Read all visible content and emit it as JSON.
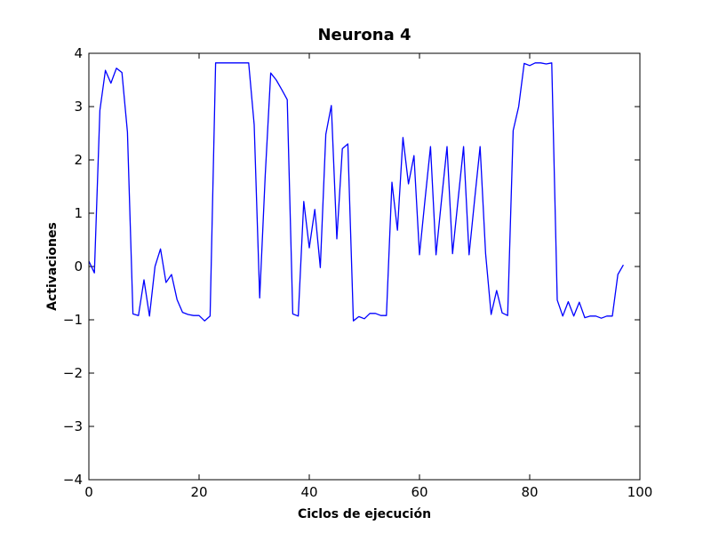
{
  "chart_data": {
    "type": "line",
    "title": "Neurona 4",
    "xlabel": "Ciclos de ejecución",
    "ylabel": "Activaciones",
    "xlim": [
      0,
      100
    ],
    "ylim": [
      -4,
      4
    ],
    "xticks": [
      0,
      20,
      40,
      60,
      80,
      100
    ],
    "yticks": [
      -4,
      -3,
      -2,
      -1,
      0,
      1,
      2,
      3,
      4
    ],
    "ytick_labels": [
      "−4",
      "−3",
      "−2",
      "−1",
      "0",
      "1",
      "2",
      "3",
      "4"
    ],
    "xtick_labels": [
      "0",
      "20",
      "40",
      "60",
      "80",
      "100"
    ],
    "grid": false,
    "legend": "none",
    "series": [
      {
        "color": "#0000ff",
        "x": [
          0,
          1,
          2,
          3,
          4,
          5,
          6,
          7,
          8,
          9,
          10,
          11,
          12,
          13,
          14,
          15,
          16,
          17,
          18,
          19,
          20,
          21,
          22,
          23,
          24,
          25,
          26,
          27,
          28,
          29,
          30,
          31,
          32,
          33,
          34,
          35,
          36,
          37,
          38,
          39,
          40,
          41,
          42,
          43,
          44,
          45,
          46,
          47,
          48,
          49,
          50,
          51,
          52,
          53,
          54,
          55,
          56,
          57,
          58,
          59,
          60,
          61,
          62,
          63,
          64,
          65,
          66,
          67,
          68,
          69,
          70,
          71,
          72,
          73,
          74,
          75,
          76,
          77,
          78,
          79,
          80,
          81,
          82,
          83,
          84,
          85,
          86,
          87,
          88,
          89,
          90,
          91,
          92,
          93,
          94,
          95,
          96,
          97
        ],
        "y": [
          0.1,
          -0.12,
          2.93,
          3.68,
          3.44,
          3.72,
          3.64,
          2.52,
          -0.89,
          -0.92,
          -0.25,
          -0.93,
          0.0,
          0.33,
          -0.3,
          -0.15,
          -0.62,
          -0.86,
          -0.9,
          -0.92,
          -0.92,
          -1.02,
          -0.93,
          3.82,
          3.82,
          3.82,
          3.82,
          3.82,
          3.82,
          3.82,
          2.66,
          -0.59,
          1.7,
          3.63,
          3.5,
          3.32,
          3.13,
          -0.89,
          -0.93,
          1.22,
          0.35,
          1.07,
          -0.02,
          2.48,
          3.02,
          0.52,
          2.21,
          2.3,
          -1.02,
          -0.94,
          -0.98,
          -0.88,
          -0.88,
          -0.92,
          -0.92,
          1.58,
          0.68,
          2.42,
          1.55,
          2.08,
          0.22,
          1.25,
          2.25,
          0.22,
          1.25,
          2.25,
          0.24,
          1.25,
          2.25,
          0.22,
          1.25,
          2.25,
          0.24,
          -0.9,
          -0.45,
          -0.87,
          -0.92,
          2.55,
          3.0,
          3.81,
          3.77,
          3.82,
          3.82,
          3.8,
          3.82,
          -0.63,
          -0.93,
          -0.66,
          -0.93,
          -0.67,
          -0.96,
          -0.93,
          -0.93,
          -0.97,
          -0.93,
          -0.93,
          -0.15,
          0.03
        ]
      }
    ]
  }
}
